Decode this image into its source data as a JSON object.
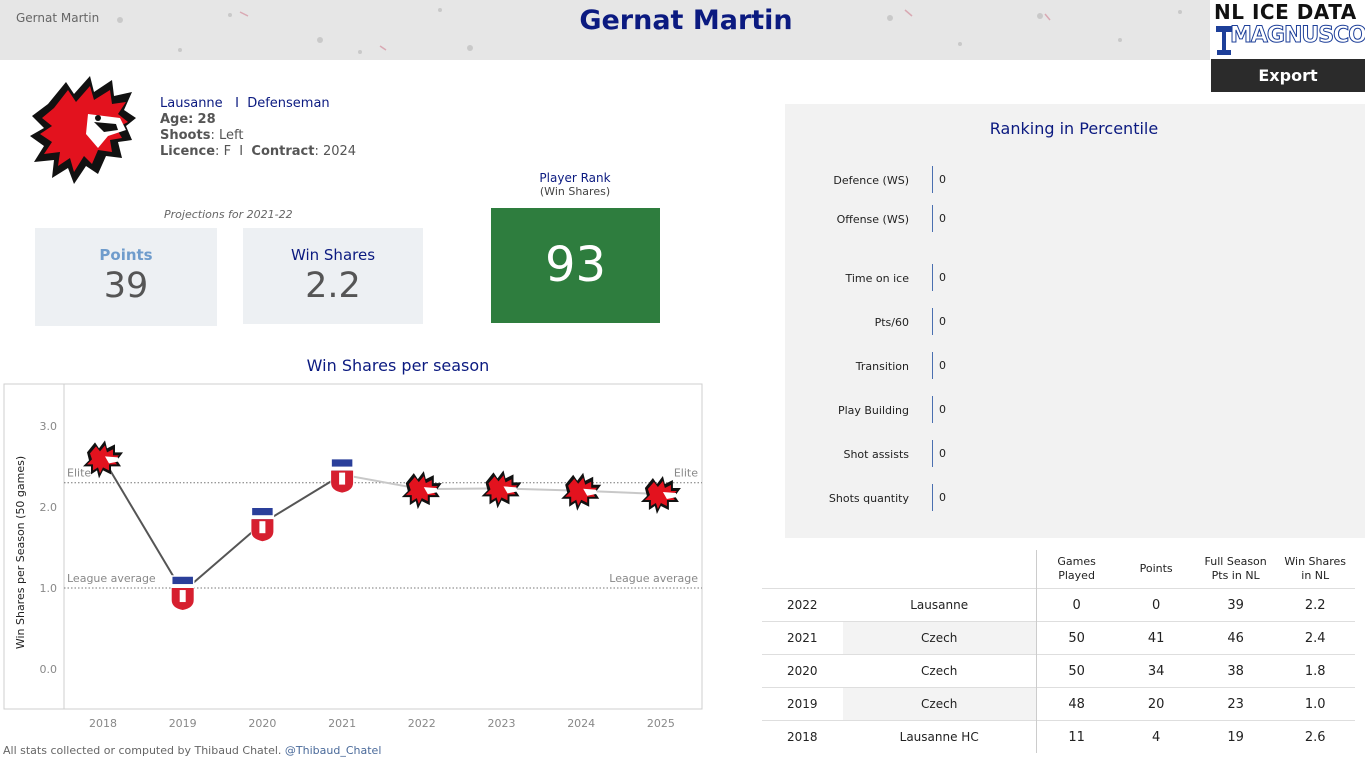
{
  "header": {
    "breadcrumb": "Gernat Martin",
    "title": "Gernat Martin",
    "brand_top": "NL ICE DATA",
    "brand_sub": "MAGNUSCORSI",
    "export_label": "Export"
  },
  "player": {
    "team": "Lausanne",
    "separator": "I",
    "position": "Defenseman",
    "age_label": "Age:",
    "age": "28",
    "shoots_label": "Shoots",
    "shoots": "Left",
    "licence_label": "Licence",
    "licence": "F",
    "contract_label": "Contract",
    "contract": "2024",
    "team_logo_icon": "lion-head-icon"
  },
  "projections": {
    "label": "Projections for 2021-22",
    "points_label": "Points",
    "points_value": "39",
    "ws_label": "Win Shares",
    "ws_value": "2.2"
  },
  "rank": {
    "title": "Player Rank",
    "subtitle": "(Win Shares)",
    "value": "93",
    "color": "#2e7d3e"
  },
  "chart_data": {
    "type": "line",
    "title": "Win Shares per season",
    "ylabel": "Win Shares per Season (50 games)",
    "ylim": [
      -0.5,
      3.5
    ],
    "yticks": [
      0.0,
      1.0,
      2.0,
      3.0
    ],
    "ytick_labels": [
      "0.0",
      "1.0",
      "2.0",
      "3.0"
    ],
    "x": [
      "2018",
      "2019",
      "2020",
      "2021",
      "2022",
      "2023",
      "2024",
      "2025"
    ],
    "values": [
      2.6,
      0.95,
      1.8,
      2.4,
      2.22,
      2.23,
      2.2,
      2.16
    ],
    "markers": [
      "lion-head-icon",
      "tipos-shield-icon",
      "tipos-shield-icon",
      "tipos-shield-icon",
      "lion-head-icon",
      "lion-head-icon",
      "lion-head-icon",
      "lion-head-icon"
    ],
    "reference_lines": [
      {
        "value": 2.3,
        "label": "Elite"
      },
      {
        "value": 1.0,
        "label": "League average"
      }
    ],
    "grid": false
  },
  "percentiles": {
    "title": "Ranking in Percentile",
    "items": [
      {
        "label": "Defence (WS)",
        "value": "0"
      },
      {
        "label": "Offense (WS)",
        "value": "0"
      },
      {
        "label": "Time on ice",
        "value": "0"
      },
      {
        "label": "Pts/60",
        "value": "0"
      },
      {
        "label": "Transition",
        "value": "0"
      },
      {
        "label": "Play Building",
        "value": "0"
      },
      {
        "label": "Shot assists",
        "value": "0"
      },
      {
        "label": "Shots quantity",
        "value": "0"
      }
    ]
  },
  "table": {
    "headers": [
      "",
      "",
      "Games Played",
      "Points",
      "Full Season Pts in NL",
      "Win Shares in NL"
    ],
    "header_lines": [
      [
        "Games",
        "Played"
      ],
      [
        "Points"
      ],
      [
        "Full Season",
        "Pts in NL"
      ],
      [
        "Win Shares",
        "in NL"
      ]
    ],
    "rows": [
      {
        "year": "2022",
        "team": "Lausanne",
        "gp": "0",
        "pts": "0",
        "full": "39",
        "ws": "2.2"
      },
      {
        "year": "2021",
        "team": "Czech",
        "gp": "50",
        "pts": "41",
        "full": "46",
        "ws": "2.4"
      },
      {
        "year": "2020",
        "team": "Czech",
        "gp": "50",
        "pts": "34",
        "full": "38",
        "ws": "1.8"
      },
      {
        "year": "2019",
        "team": "Czech",
        "gp": "48",
        "pts": "20",
        "full": "23",
        "ws": "1.0"
      },
      {
        "year": "2018",
        "team": "Lausanne HC",
        "gp": "11",
        "pts": "4",
        "full": "19",
        "ws": "2.6"
      }
    ]
  },
  "footer": {
    "text": "All stats collected or computed by Thibaud Chatel.",
    "handle": "@Thibaud_Chatel"
  },
  "colors": {
    "title_blue": "#0b1a80",
    "points_blue": "#6f9ccc",
    "line": "#555555"
  }
}
